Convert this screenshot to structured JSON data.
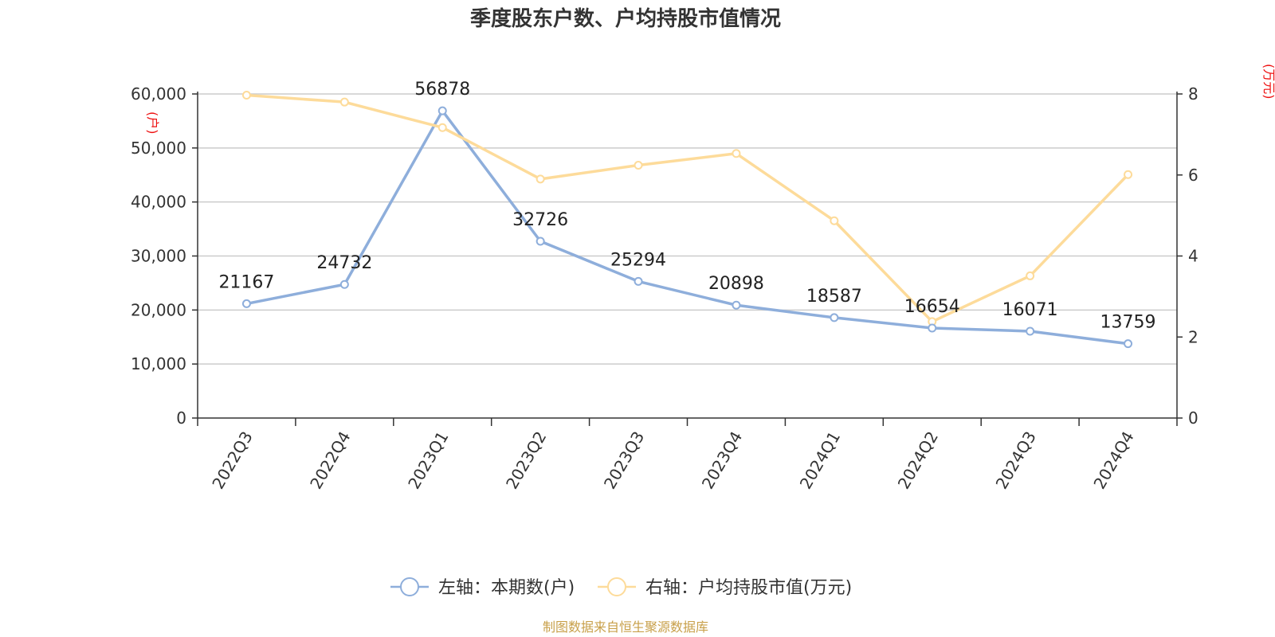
{
  "chart_data": {
    "type": "line",
    "title": "季度股东户数、户均持股市值情况",
    "categories": [
      "2022Q3",
      "2022Q4",
      "2023Q1",
      "2023Q2",
      "2023Q3",
      "2023Q4",
      "2024Q1",
      "2024Q2",
      "2024Q3",
      "2024Q4"
    ],
    "left_axis": {
      "unit": "(户)",
      "ylim": [
        0,
        60000
      ],
      "ticks": [
        "0",
        "10,000",
        "20,000",
        "30,000",
        "40,000",
        "50,000",
        "60,000"
      ]
    },
    "right_axis": {
      "unit": "(万元)",
      "ylim": [
        0,
        8
      ],
      "ticks": [
        "0",
        "2",
        "4",
        "6",
        "8"
      ]
    },
    "series": [
      {
        "name": "左轴：本期数(户)",
        "axis": "left",
        "color": "#8eaedb",
        "values": [
          21167,
          24732,
          56878,
          32726,
          25294,
          20898,
          18587,
          16654,
          16071,
          13759
        ],
        "labels": [
          "21167",
          "24732",
          "56878",
          "32726",
          "25294",
          "20898",
          "18587",
          "16654",
          "16071",
          "13759"
        ]
      },
      {
        "name": "右轴：户均持股市值(万元)",
        "axis": "right",
        "color": "#fddb9a",
        "values": [
          7.97,
          7.8,
          7.17,
          5.9,
          6.24,
          6.53,
          4.87,
          2.38,
          3.51,
          6.01
        ]
      }
    ],
    "grid": true,
    "legend_position": "bottom"
  },
  "footer": {
    "source": "制图数据来自恒生聚源数据库"
  }
}
